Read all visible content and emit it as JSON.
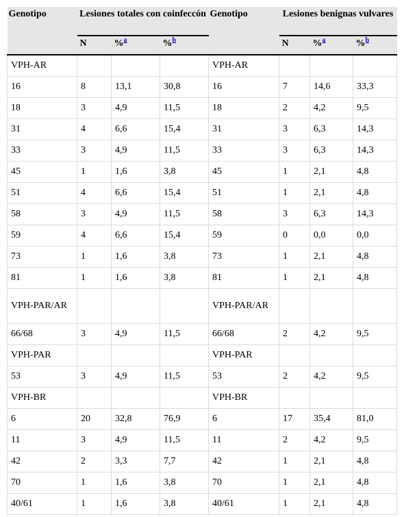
{
  "header": {
    "left_genotype": "Genotipo",
    "left_group": "Lesiones totales con coinfeccón",
    "right_genotype": "Genotipo",
    "right_group": "Lesiones benignas vulvares",
    "sub": {
      "n": "N",
      "pct": "%",
      "sup_a": "a",
      "sup_b": "b"
    }
  },
  "rows": [
    {
      "type": "group",
      "left": "VPH-AR",
      "right": "VPH-AR"
    },
    {
      "type": "data",
      "g1": "16",
      "n1": "8",
      "pa1": "13,1",
      "pb1": "30,8",
      "g2": "16",
      "n2": "7",
      "pa2": "14,6",
      "pb2": "33,3"
    },
    {
      "type": "data",
      "g1": "18",
      "n1": "3",
      "pa1": "4,9",
      "pb1": "11,5",
      "g2": "18",
      "n2": "2",
      "pa2": "4,2",
      "pb2": "9,5"
    },
    {
      "type": "data",
      "g1": "31",
      "n1": "4",
      "pa1": "6,6",
      "pb1": "15,4",
      "g2": "31",
      "n2": "3",
      "pa2": "6,3",
      "pb2": "14,3"
    },
    {
      "type": "data",
      "g1": "33",
      "n1": "3",
      "pa1": "4,9",
      "pb1": "11,5",
      "g2": "33",
      "n2": "3",
      "pa2": "6,3",
      "pb2": "14,3"
    },
    {
      "type": "data",
      "g1": "45",
      "n1": "1",
      "pa1": "1,6",
      "pb1": "3,8",
      "g2": "45",
      "n2": "1",
      "pa2": "2,1",
      "pb2": "4,8"
    },
    {
      "type": "data",
      "g1": "51",
      "n1": "4",
      "pa1": "6,6",
      "pb1": "15,4",
      "g2": "51",
      "n2": "1",
      "pa2": "2,1",
      "pb2": "4,8"
    },
    {
      "type": "data",
      "g1": "58",
      "n1": "3",
      "pa1": "4,9",
      "pb1": "11,5",
      "g2": "58",
      "n2": "3",
      "pa2": "6,3",
      "pb2": "14,3"
    },
    {
      "type": "data",
      "g1": "59",
      "n1": "4",
      "pa1": "6,6",
      "pb1": "15,4",
      "g2": "59",
      "n2": "0",
      "pa2": "0,0",
      "pb2": "0,0"
    },
    {
      "type": "data",
      "g1": "73",
      "n1": "1",
      "pa1": "1,6",
      "pb1": "3,8",
      "g2": "73",
      "n2": "1",
      "pa2": "2,1",
      "pb2": "4,8"
    },
    {
      "type": "data",
      "g1": "81",
      "n1": "1",
      "pa1": "1,6",
      "pb1": "3,8",
      "g2": "81",
      "n2": "1",
      "pa2": "2,1",
      "pb2": "4,8"
    },
    {
      "type": "group",
      "tall": true,
      "left": "VPH-PAR/AR",
      "right": "VPH-PAR/AR"
    },
    {
      "type": "data",
      "g1": "66/68",
      "n1": "3",
      "pa1": "4,9",
      "pb1": "11,5",
      "g2": "66/68",
      "n2": "2",
      "pa2": "4,2",
      "pb2": "9,5"
    },
    {
      "type": "group",
      "left": "VPH-PAR",
      "right": "VPH-PAR"
    },
    {
      "type": "data",
      "g1": "53",
      "n1": "3",
      "pa1": "4,9",
      "pb1": "11,5",
      "g2": "53",
      "n2": "2",
      "pa2": "4,2",
      "pb2": "9,5"
    },
    {
      "type": "group",
      "left": "VPH-BR",
      "right": "VPH-BR"
    },
    {
      "type": "data",
      "g1": "6",
      "n1": "20",
      "pa1": "32,8",
      "pb1": "76,9",
      "g2": "6",
      "n2": "17",
      "pa2": "35,4",
      "pb2": "81,0"
    },
    {
      "type": "data",
      "g1": "11",
      "n1": "3",
      "pa1": "4,9",
      "pb1": "11,5",
      "g2": "11",
      "n2": "2",
      "pa2": "4,2",
      "pb2": "9,5"
    },
    {
      "type": "data",
      "g1": "42",
      "n1": "2",
      "pa1": "3,3",
      "pb1": "7,7",
      "g2": "42",
      "n2": "1",
      "pa2": "2,1",
      "pb2": "4,8"
    },
    {
      "type": "data",
      "g1": "70",
      "n1": "1",
      "pa1": "1,6",
      "pb1": "3,8",
      "g2": "70",
      "n2": "1",
      "pa2": "2,1",
      "pb2": "4,8"
    },
    {
      "type": "data",
      "g1": "40/61",
      "n1": "1",
      "pa1": "1,6",
      "pb1": "3,8",
      "g2": "40/61",
      "n2": "1",
      "pa2": "2,1",
      "pb2": "4,8"
    }
  ]
}
